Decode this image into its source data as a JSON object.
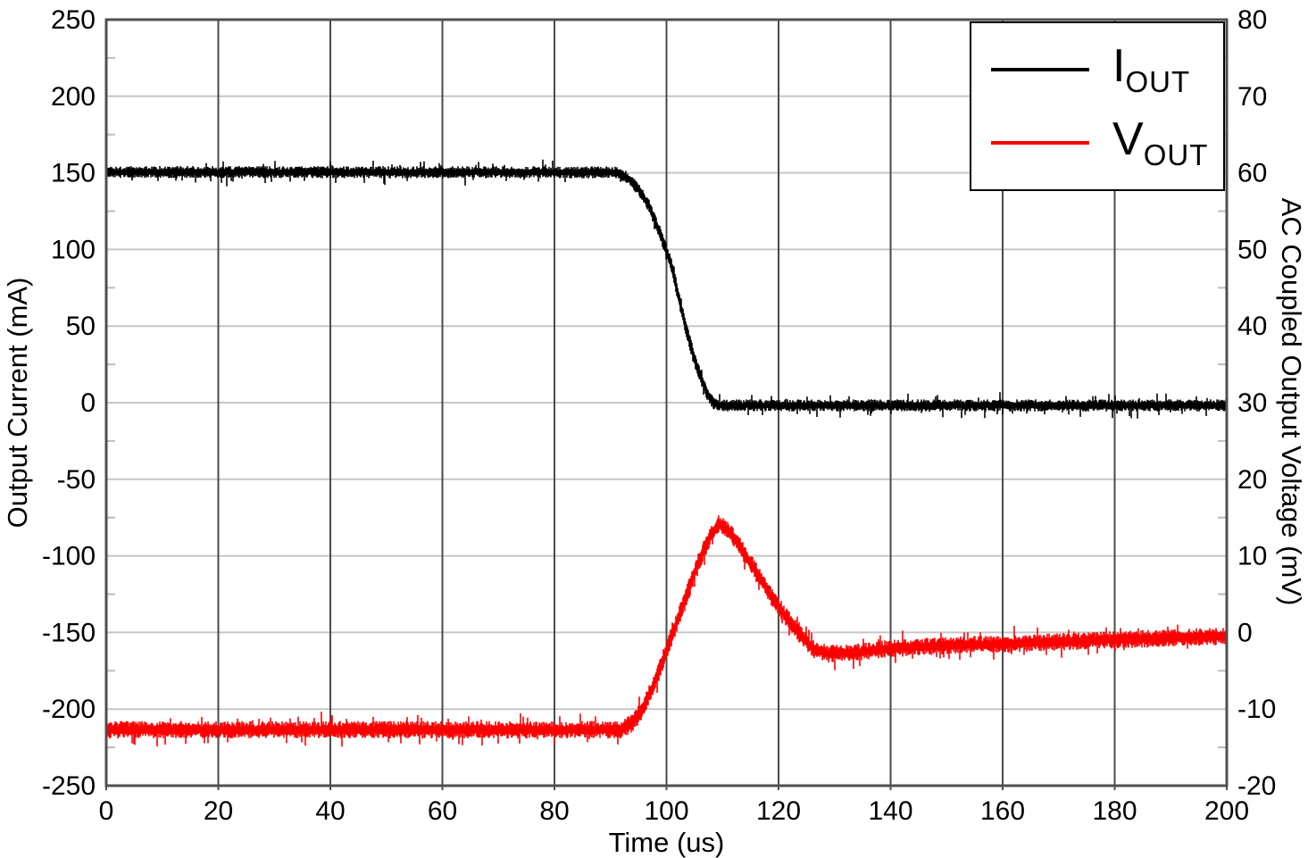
{
  "chart_data": {
    "type": "line",
    "title": "",
    "xlabel": "Time (us)",
    "ylabel_left": "Output Current (mA)",
    "ylabel_right": "AC Coupled Output Voltage (mV)",
    "x_range": [
      0,
      200
    ],
    "x_ticks": [
      0,
      20,
      40,
      60,
      80,
      100,
      120,
      140,
      160,
      180,
      200
    ],
    "y_left_range": [
      -250,
      250
    ],
    "y_left_ticks": [
      250,
      200,
      150,
      100,
      50,
      0,
      -50,
      -100,
      -150,
      -200,
      -250
    ],
    "y_left_minor_step": 25,
    "y_right_range": [
      -20,
      80
    ],
    "y_right_ticks": [
      80,
      70,
      60,
      50,
      40,
      30,
      20,
      10,
      0,
      -10,
      -20
    ],
    "grid": {
      "vertical_color": "#4a4a4a",
      "horizontal_color": "#c6c6c6",
      "minor_tick_color": "#bdbdbd",
      "frame_color": "#4f4f4f",
      "background": "#ffffff"
    },
    "legend": {
      "position": "top-right",
      "entries": [
        {
          "main": "I",
          "sub": "OUT",
          "color": "#000000"
        },
        {
          "main": "V",
          "sub": "OUT",
          "color": "#fb0000"
        }
      ]
    },
    "series": [
      {
        "name": "IOUT",
        "axis": "left",
        "units": "mA",
        "color": "#000000",
        "noise_half_band": 3.3,
        "spike_extra": 5.5,
        "keypoints": [
          [
            0,
            150.5
          ],
          [
            91,
            150.3
          ],
          [
            93,
            147
          ],
          [
            95,
            140
          ],
          [
            97,
            128
          ],
          [
            99,
            110
          ],
          [
            101,
            89
          ],
          [
            103,
            57
          ],
          [
            105,
            29
          ],
          [
            106.5,
            14
          ],
          [
            107.5,
            5
          ],
          [
            108.5,
            -0.5
          ],
          [
            110,
            -1.8
          ],
          [
            200,
            -1.8
          ]
        ]
      },
      {
        "name": "VOUT",
        "axis": "right",
        "units": "mV",
        "color": "#fb0000",
        "noise_half_band": 0.95,
        "spike_extra": 1.3,
        "keypoints": [
          [
            0,
            -12.7
          ],
          [
            92,
            -12.7
          ],
          [
            94,
            -11.8
          ],
          [
            96,
            -9.8
          ],
          [
            98,
            -6.5
          ],
          [
            100,
            -2.5
          ],
          [
            102,
            1.5
          ],
          [
            104,
            5.5
          ],
          [
            106,
            9.5
          ],
          [
            108,
            12.8
          ],
          [
            109.5,
            14.2
          ],
          [
            111,
            13.4
          ],
          [
            113,
            11.4
          ],
          [
            116,
            8
          ],
          [
            119,
            4.5
          ],
          [
            122,
            1.5
          ],
          [
            124.5,
            -0.8
          ],
          [
            126.5,
            -2.2
          ],
          [
            129,
            -2.8
          ],
          [
            134,
            -2.6
          ],
          [
            140,
            -2.1
          ],
          [
            150,
            -1.7
          ],
          [
            160,
            -1.5
          ],
          [
            175,
            -1.1
          ],
          [
            190,
            -0.7
          ],
          [
            200,
            -0.5
          ]
        ]
      }
    ]
  }
}
